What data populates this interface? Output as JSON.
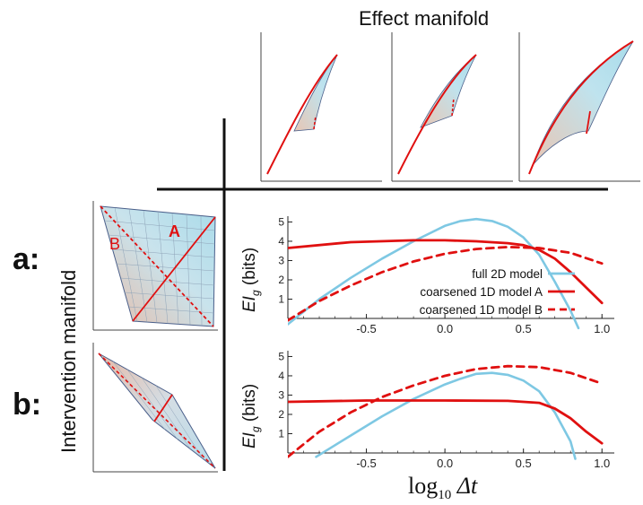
{
  "figure": {
    "top_title": "Effect manifold",
    "left_title": "Intervention manifold",
    "row_a_label": "a:",
    "row_b_label": "b:",
    "region_a_label": "A",
    "region_b_label": "B",
    "x_axis_label_prefix": "log",
    "x_axis_label_sub": "10",
    "x_axis_label_var": "Δt",
    "y_axis_label_main": "EI",
    "y_axis_label_sub": "g",
    "y_axis_label_unit": " (bits)"
  },
  "colors": {
    "full": "#7ec8e3",
    "coarseA": "#e01010",
    "coarseB": "#e01010",
    "axis": "#222222"
  },
  "chart_data": [
    {
      "type": "line",
      "panel": "a",
      "xlim": [
        -1.0,
        1.05
      ],
      "ylim": [
        0,
        5.3
      ],
      "xticks": [
        -0.5,
        0.0,
        0.5,
        1.0
      ],
      "xtick_labels": [
        "-0.5",
        "0.0",
        "0.5",
        "1.0"
      ],
      "yticks": [
        1,
        2,
        3,
        4,
        5
      ],
      "ytick_labels": [
        "1",
        "2",
        "3",
        "4",
        "5"
      ],
      "legend_position": "center-right",
      "series": [
        {
          "name": "full 2D model",
          "style": "solid",
          "color": "#7ec8e3",
          "x": [
            -1.0,
            -0.8,
            -0.6,
            -0.4,
            -0.2,
            0.0,
            0.1,
            0.2,
            0.3,
            0.4,
            0.5,
            0.6,
            0.7,
            0.8,
            0.85
          ],
          "y": [
            -0.3,
            1.0,
            2.1,
            3.1,
            4.0,
            4.8,
            5.05,
            5.15,
            5.05,
            4.75,
            4.2,
            3.3,
            1.9,
            0.4,
            -0.5
          ]
        },
        {
          "name": "coarsened 1D model A",
          "style": "solid",
          "color": "#e01010",
          "x": [
            -1.0,
            -0.6,
            -0.2,
            0.0,
            0.2,
            0.4,
            0.5,
            0.6,
            0.7,
            0.8,
            0.9,
            1.0
          ],
          "y": [
            3.65,
            3.95,
            4.05,
            4.05,
            4.0,
            3.9,
            3.8,
            3.55,
            3.1,
            2.4,
            1.6,
            0.8
          ]
        },
        {
          "name": "coarsened 1D model B",
          "style": "dashed",
          "color": "#e01010",
          "x": [
            -1.0,
            -0.8,
            -0.6,
            -0.4,
            -0.2,
            0.0,
            0.2,
            0.4,
            0.6,
            0.8,
            1.0
          ],
          "y": [
            -0.1,
            0.9,
            1.7,
            2.4,
            2.95,
            3.35,
            3.6,
            3.7,
            3.65,
            3.4,
            2.85
          ]
        }
      ]
    },
    {
      "type": "line",
      "panel": "b",
      "xlim": [
        -1.0,
        1.05
      ],
      "ylim": [
        0,
        5.3
      ],
      "xticks": [
        -0.5,
        0.0,
        0.5,
        1.0
      ],
      "xtick_labels": [
        "-0.5",
        "0.0",
        "0.5",
        "1.0"
      ],
      "yticks": [
        1,
        2,
        3,
        4,
        5
      ],
      "ytick_labels": [
        "1",
        "2",
        "3",
        "4",
        "5"
      ],
      "series": [
        {
          "name": "full 2D model",
          "style": "solid",
          "color": "#7ec8e3",
          "x": [
            -0.82,
            -0.6,
            -0.4,
            -0.2,
            0.0,
            0.1,
            0.2,
            0.3,
            0.4,
            0.5,
            0.6,
            0.7,
            0.8,
            0.83
          ],
          "y": [
            -0.2,
            0.9,
            1.9,
            2.8,
            3.55,
            3.85,
            4.1,
            4.15,
            4.05,
            3.75,
            3.2,
            2.1,
            0.6,
            -0.3
          ]
        },
        {
          "name": "coarsened 1D model A",
          "style": "solid",
          "color": "#e01010",
          "x": [
            -1.0,
            -0.5,
            0.0,
            0.4,
            0.6,
            0.7,
            0.8,
            0.9,
            1.0
          ],
          "y": [
            2.65,
            2.72,
            2.72,
            2.7,
            2.6,
            2.3,
            1.8,
            1.1,
            0.5
          ]
        },
        {
          "name": "coarsened 1D model B",
          "style": "dashed",
          "color": "#e01010",
          "x": [
            -1.0,
            -0.8,
            -0.6,
            -0.4,
            -0.2,
            0.0,
            0.2,
            0.4,
            0.6,
            0.8,
            1.0
          ],
          "y": [
            -0.2,
            1.1,
            2.1,
            2.9,
            3.5,
            4.0,
            4.35,
            4.5,
            4.45,
            4.15,
            3.6
          ]
        }
      ]
    }
  ]
}
